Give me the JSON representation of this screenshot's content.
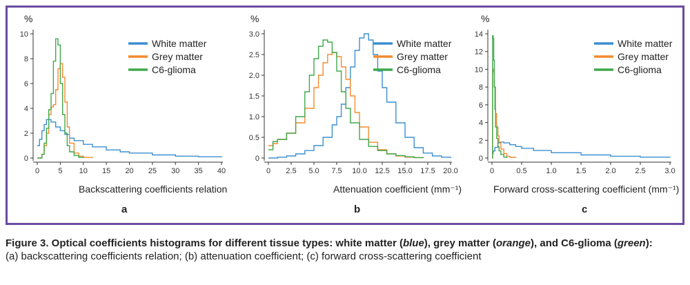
{
  "figure": {
    "caption_bold_parts": [
      {
        "text": "Figure 3. Optical coefficients histograms for different tissue types: white matter (",
        "style": "b"
      },
      {
        "text": "blue",
        "style": "bi"
      },
      {
        "text": "), grey matter (",
        "style": "b"
      },
      {
        "text": "orange",
        "style": "bi"
      },
      {
        "text": "), and C6-glioma (",
        "style": "b"
      },
      {
        "text": "green",
        "style": "bi"
      },
      {
        "text": "):",
        "style": "b"
      }
    ],
    "caption_line2": "(a) backscattering coefficients relation; (b) attenuation coefficient; (c) forward cross-scattering coefficient"
  },
  "colors": {
    "white_matter": "#3b8fd0",
    "grey_matter": "#f28b2e",
    "c6_glioma": "#3ea84a",
    "frame": "#6a4ba0"
  },
  "chart_data": [
    {
      "type": "line",
      "panel_label": "a",
      "ylabel": "%",
      "xlabel": "Backscattering coefficients relation",
      "xlim": [
        0,
        40
      ],
      "ylim": [
        0,
        10
      ],
      "xticks": [
        0,
        5,
        10,
        15,
        20,
        25,
        30,
        35,
        40
      ],
      "yticks": [
        0,
        2,
        4,
        6,
        8,
        10
      ],
      "legend_position": "top-right",
      "step": true,
      "series": [
        {
          "name": "White matter",
          "color_key": "white_matter",
          "x": [
            0,
            0.5,
            1,
            1.5,
            2,
            2.5,
            3,
            4,
            5,
            6,
            7,
            8,
            10,
            12,
            15,
            18,
            20,
            25,
            30,
            35,
            40
          ],
          "y": [
            1.0,
            1.5,
            2.2,
            2.7,
            3.1,
            3.1,
            2.9,
            2.5,
            2.2,
            1.9,
            1.6,
            1.4,
            1.1,
            0.9,
            0.65,
            0.5,
            0.4,
            0.25,
            0.15,
            0.1,
            0.05
          ]
        },
        {
          "name": "Grey matter",
          "color_key": "grey_matter",
          "x": [
            0,
            1,
            1.5,
            2,
            2.5,
            3,
            3.5,
            4,
            4.5,
            5,
            5.5,
            6,
            6.5,
            7,
            8,
            9,
            10,
            12
          ],
          "y": [
            0,
            0.3,
            1.0,
            2.0,
            3.5,
            4.1,
            4.3,
            5.5,
            7.2,
            7.6,
            6.5,
            4.5,
            2.5,
            1.2,
            0.4,
            0.15,
            0.05,
            0
          ]
        },
        {
          "name": "C6-glioma",
          "color_key": "c6_glioma",
          "x": [
            0,
            1,
            1.5,
            2,
            2.5,
            3,
            3.5,
            4,
            4.5,
            5,
            5.5,
            6,
            6.5,
            7,
            8,
            9,
            10
          ],
          "y": [
            0,
            0.3,
            1.2,
            2.4,
            3.9,
            5.2,
            7.8,
            9.6,
            9.1,
            6.0,
            3.5,
            2.0,
            1.0,
            0.5,
            0.2,
            0.05,
            0
          ]
        }
      ]
    },
    {
      "type": "line",
      "panel_label": "b",
      "ylabel": "%",
      "xlabel": "Attenuation coefficient (mm⁻¹)",
      "xlim": [
        0,
        20
      ],
      "ylim": [
        0,
        3.0
      ],
      "xticks": [
        0.0,
        2.5,
        5.0,
        7.5,
        10.0,
        12.5,
        15.0,
        17.5,
        20.0
      ],
      "yticks": [
        0,
        0.5,
        1.0,
        1.5,
        2.0,
        2.5,
        3.0
      ],
      "ytick_labels": [
        "0",
        "0.5",
        "1.0",
        "1.5",
        "2.0",
        "2.5",
        "3.0"
      ],
      "xtick_labels": [
        "0",
        "2.5",
        "5.0",
        "7.5",
        "10.0",
        "12.5",
        "15.0",
        "17.5",
        "20.0"
      ],
      "legend_position": "top-right",
      "step": true,
      "series": [
        {
          "name": "White matter",
          "color_key": "white_matter",
          "x": [
            0,
            1,
            2,
            3,
            4,
            5,
            6,
            7,
            7.5,
            8,
            8.5,
            9,
            9.5,
            10,
            10.5,
            11,
            11.5,
            12,
            12.5,
            13,
            14,
            15,
            16,
            17,
            18,
            19,
            20
          ],
          "y": [
            0,
            0.02,
            0.05,
            0.1,
            0.18,
            0.3,
            0.5,
            0.8,
            1.0,
            1.3,
            1.7,
            2.2,
            2.6,
            2.9,
            3.0,
            2.85,
            2.5,
            2.1,
            1.7,
            1.35,
            0.85,
            0.5,
            0.25,
            0.12,
            0.05,
            0.02,
            0
          ]
        },
        {
          "name": "Grey matter",
          "color_key": "grey_matter",
          "x": [
            0,
            0.5,
            1,
            2,
            3,
            4,
            5,
            5.5,
            6,
            6.5,
            7,
            7.5,
            8,
            8.5,
            9,
            9.5,
            10,
            11,
            12,
            13,
            14,
            15,
            16,
            17
          ],
          "y": [
            0.3,
            0.35,
            0.45,
            0.6,
            0.85,
            1.2,
            1.7,
            2.0,
            2.3,
            2.5,
            2.55,
            2.45,
            2.2,
            1.9,
            1.5,
            1.1,
            0.75,
            0.38,
            0.2,
            0.1,
            0.05,
            0.02,
            0.01,
            0
          ]
        },
        {
          "name": "C6-glioma",
          "color_key": "c6_glioma",
          "x": [
            0,
            0.5,
            1,
            1.5,
            2,
            3,
            4,
            4.5,
            5,
            5.5,
            6,
            6.5,
            7,
            7.5,
            8,
            8.5,
            9,
            10,
            11,
            12,
            13,
            14,
            15,
            16,
            17
          ],
          "y": [
            0.2,
            0.4,
            0.45,
            0.45,
            0.6,
            1.0,
            1.6,
            2.0,
            2.4,
            2.7,
            2.85,
            2.8,
            2.55,
            2.1,
            1.6,
            1.2,
            0.85,
            0.45,
            0.28,
            0.18,
            0.1,
            0.06,
            0.03,
            0.01,
            0
          ]
        }
      ]
    },
    {
      "type": "line",
      "panel_label": "c",
      "ylabel": "%",
      "xlabel": "Forward cross-scattering coefficient (mm⁻¹)",
      "xlim": [
        0,
        3.0
      ],
      "ylim": [
        0,
        14
      ],
      "xticks": [
        0,
        0.5,
        1.0,
        1.5,
        2.0,
        2.5,
        3.0
      ],
      "xtick_labels": [
        "0",
        "0.5",
        "1.0",
        "1.5",
        "2.0",
        "2.5",
        "3.0"
      ],
      "yticks": [
        0,
        2,
        4,
        6,
        8,
        10,
        12,
        14
      ],
      "legend_position": "top-right",
      "step": true,
      "series": [
        {
          "name": "White matter",
          "color_key": "white_matter",
          "x": [
            0,
            0.02,
            0.05,
            0.1,
            0.15,
            0.2,
            0.3,
            0.4,
            0.5,
            0.7,
            1.0,
            1.5,
            2.0,
            2.5,
            3.0
          ],
          "y": [
            0.5,
            0.8,
            1.2,
            1.7,
            1.8,
            1.7,
            1.5,
            1.3,
            1.1,
            0.85,
            0.6,
            0.35,
            0.2,
            0.1,
            0.05
          ]
        },
        {
          "name": "Grey matter",
          "color_key": "grey_matter",
          "x": [
            0,
            0.01,
            0.02,
            0.04,
            0.06,
            0.08,
            0.1,
            0.12,
            0.15,
            0.2,
            0.25,
            0.3,
            0.4
          ],
          "y": [
            0,
            9.7,
            10.0,
            8.0,
            5.0,
            3.5,
            2.5,
            1.8,
            1.0,
            0.5,
            0.2,
            0.08,
            0
          ]
        },
        {
          "name": "C6-glioma",
          "color_key": "c6_glioma",
          "x": [
            0,
            0.01,
            0.02,
            0.03,
            0.04,
            0.05,
            0.06,
            0.08,
            0.1,
            0.12,
            0.15,
            0.2,
            0.25
          ],
          "y": [
            0,
            13.8,
            13.5,
            11.0,
            8.0,
            5.5,
            3.5,
            2.2,
            1.3,
            0.8,
            0.4,
            0.1,
            0
          ]
        }
      ]
    }
  ]
}
